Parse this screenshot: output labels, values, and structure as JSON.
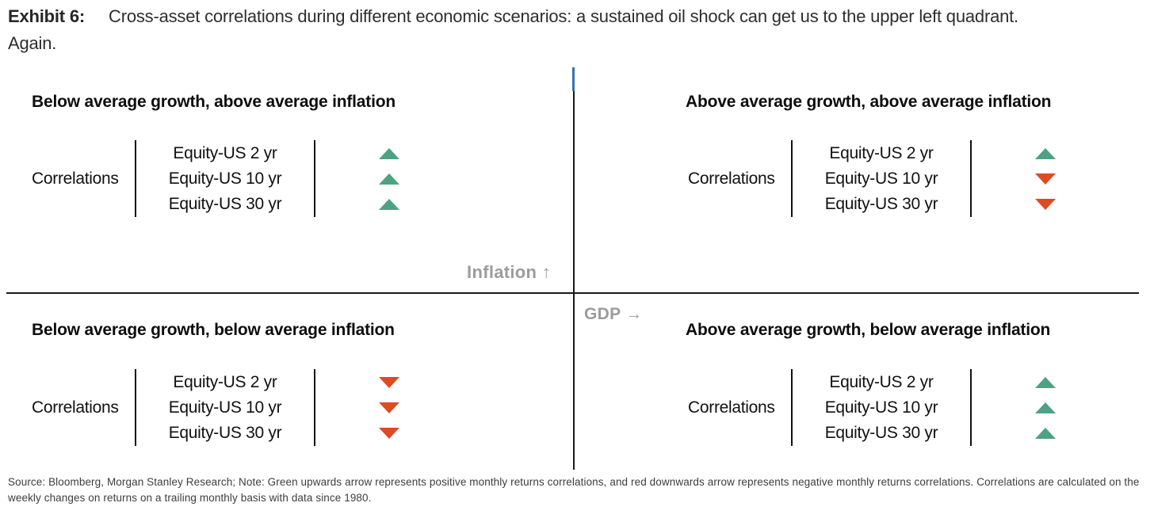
{
  "title": {
    "exhibit_label": "Exhibit 6:",
    "line1": "Cross-asset correlations during different economic scenarios: a sustained oil shock can get us to the upper left quadrant.",
    "line2": "Again."
  },
  "axes": {
    "y_label": "Inflation ↑",
    "x_label": "GDP →"
  },
  "quadrants": [
    {
      "position": "upper-left",
      "heading": "Below average growth, above average inflation",
      "correlations_label": "Correlations",
      "rows": [
        {
          "label": "Equity-US 2 yr",
          "direction": "up"
        },
        {
          "label": "Equity-US 10 yr",
          "direction": "up"
        },
        {
          "label": "Equity-US 30 yr",
          "direction": "up"
        }
      ]
    },
    {
      "position": "upper-right",
      "heading": "Above average growth, above average inflation",
      "correlations_label": "Correlations",
      "rows": [
        {
          "label": "Equity-US 2 yr",
          "direction": "up"
        },
        {
          "label": "Equity-US 10 yr",
          "direction": "down"
        },
        {
          "label": "Equity-US 30 yr",
          "direction": "down"
        }
      ]
    },
    {
      "position": "lower-left",
      "heading": "Below average growth, below average inflation",
      "correlations_label": "Correlations",
      "rows": [
        {
          "label": "Equity-US 2 yr",
          "direction": "down"
        },
        {
          "label": "Equity-US 10 yr",
          "direction": "down"
        },
        {
          "label": "Equity-US 30 yr",
          "direction": "down"
        }
      ]
    },
    {
      "position": "lower-right",
      "heading": "Above average growth, below average inflation",
      "correlations_label": "Correlations",
      "rows": [
        {
          "label": "Equity-US 2 yr",
          "direction": "up"
        },
        {
          "label": "Equity-US 10 yr",
          "direction": "up"
        },
        {
          "label": "Equity-US 30 yr",
          "direction": "up"
        }
      ]
    }
  ],
  "source_note": "Source: Bloomberg, Morgan Stanley Research; Note: Green upwards arrow represents positive monthly returns correlations, and red downwards arrow represents negative monthly returns correlations. Correlations are calculated on the weekly changes on returns on a trailing monthly basis with data since 1980.",
  "colors": {
    "up": "#4da282",
    "down": "#e04a23",
    "line": "#1a1a1a",
    "gray": "#9c9c9c",
    "blue": "#3373b5"
  },
  "chart_data": {
    "type": "table",
    "title": "Cross-asset correlations during different economic scenarios: a sustained oil shock can get us to the upper left quadrant. Again.",
    "xlabel": "GDP →",
    "ylabel": "Inflation ↑",
    "legend": {
      "up": "positive monthly returns correlation (green upwards arrow)",
      "down": "negative monthly returns correlation (red downwards arrow)"
    },
    "categories": [
      "Equity-US 2 yr",
      "Equity-US 10 yr",
      "Equity-US 30 yr"
    ],
    "quadrants": [
      {
        "scenario": "Below average growth, above average inflation",
        "values": [
          "positive",
          "positive",
          "positive"
        ]
      },
      {
        "scenario": "Above average growth, above average inflation",
        "values": [
          "positive",
          "negative",
          "negative"
        ]
      },
      {
        "scenario": "Below average growth, below average inflation",
        "values": [
          "negative",
          "negative",
          "negative"
        ]
      },
      {
        "scenario": "Above average growth, below average inflation",
        "values": [
          "positive",
          "positive",
          "positive"
        ]
      }
    ]
  }
}
